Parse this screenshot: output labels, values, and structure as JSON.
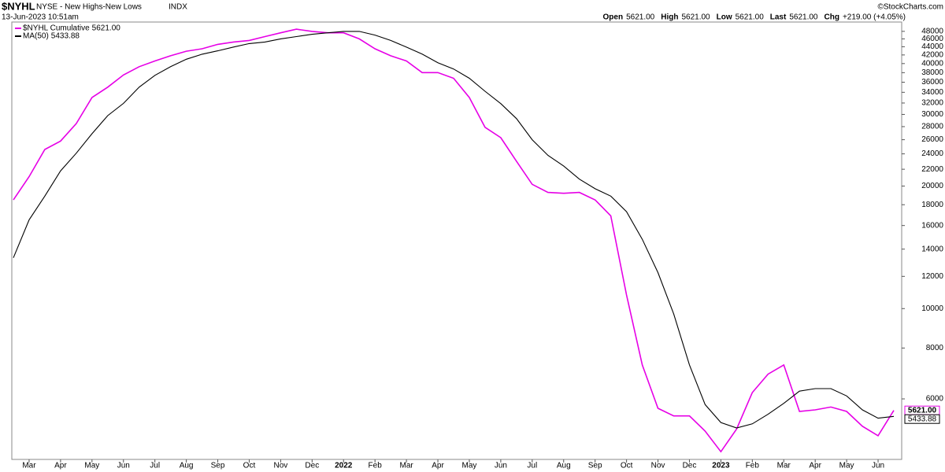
{
  "header": {
    "symbol": "$NYHL",
    "description": "NYSE - New Highs-New Lows",
    "exchange": "INDX",
    "timestamp": "13-Jun-2023 10:51am",
    "credit": "©StockCharts.com",
    "quote": [
      {
        "label": "Open",
        "value": "5621.00"
      },
      {
        "label": "High",
        "value": "5621.00"
      },
      {
        "label": "Low",
        "value": "5621.00"
      },
      {
        "label": "Last",
        "value": "5621.00"
      },
      {
        "label": "Chg",
        "value": "+219.00 (+4.05%)"
      }
    ]
  },
  "chart_data": {
    "type": "line",
    "log_scale": true,
    "grid": false,
    "categories": [
      null,
      "Mar",
      null,
      "Apr",
      null,
      "May",
      null,
      "Jun",
      null,
      "Jul",
      null,
      "Aug",
      null,
      "Sep",
      null,
      "Oct",
      null,
      "Nov",
      null,
      "Dec",
      null,
      "2022",
      null,
      "Feb",
      null,
      "Mar",
      null,
      "Apr",
      null,
      "May",
      null,
      "Jun",
      null,
      "Jul",
      null,
      "Aug",
      null,
      "Sep",
      null,
      "Oct",
      null,
      "Nov",
      null,
      "Dec",
      null,
      "2023",
      null,
      "Feb",
      null,
      "Mar",
      null,
      "Apr",
      null,
      "May",
      null,
      "Jun",
      null
    ],
    "series": [
      {
        "name": "$NYHL Cumulative",
        "last_label": "5621.00",
        "color": "#e600e6",
        "values": [
          18500,
          21100,
          24600,
          25800,
          28500,
          33000,
          35000,
          37500,
          39300,
          40600,
          41800,
          42900,
          43500,
          44600,
          45200,
          45600,
          46600,
          47600,
          48600,
          48000,
          47600,
          47600,
          46000,
          43500,
          41800,
          40600,
          38000,
          38000,
          36800,
          33000,
          27900,
          26300,
          23000,
          20200,
          19300,
          19200,
          19300,
          18500,
          16900,
          10800,
          7270,
          5690,
          5450,
          5450,
          5000,
          4450,
          5060,
          6220,
          6900,
          7270,
          5590,
          5640,
          5730,
          5590,
          5140,
          4870,
          5621
        ]
      },
      {
        "name": "MA(50)",
        "last_label": "5433.88",
        "color": "#000000",
        "values": [
          13330,
          16530,
          18900,
          21800,
          24100,
          26900,
          29800,
          31930,
          35000,
          37420,
          39300,
          41000,
          42180,
          43000,
          43920,
          44800,
          45200,
          46000,
          46600,
          47200,
          47600,
          48000,
          48000,
          47000,
          45600,
          43900,
          42200,
          40200,
          38800,
          36800,
          34200,
          31900,
          29300,
          26000,
          23800,
          22400,
          20800,
          19700,
          18900,
          17300,
          14800,
          12260,
          9700,
          7270,
          5810,
          5250,
          5090,
          5210,
          5500,
          5850,
          6270,
          6360,
          6360,
          6100,
          5640,
          5380,
          5433.88
        ]
      }
    ],
    "ylim": [
      4260,
      50600
    ],
    "yticks": [
      6000,
      8000,
      10000,
      12000,
      14000,
      16000,
      18000,
      20000,
      22000,
      24000,
      26000,
      28000,
      30000,
      32000,
      34000,
      36000,
      38000,
      40000,
      42000,
      44000,
      46000,
      48000
    ]
  }
}
